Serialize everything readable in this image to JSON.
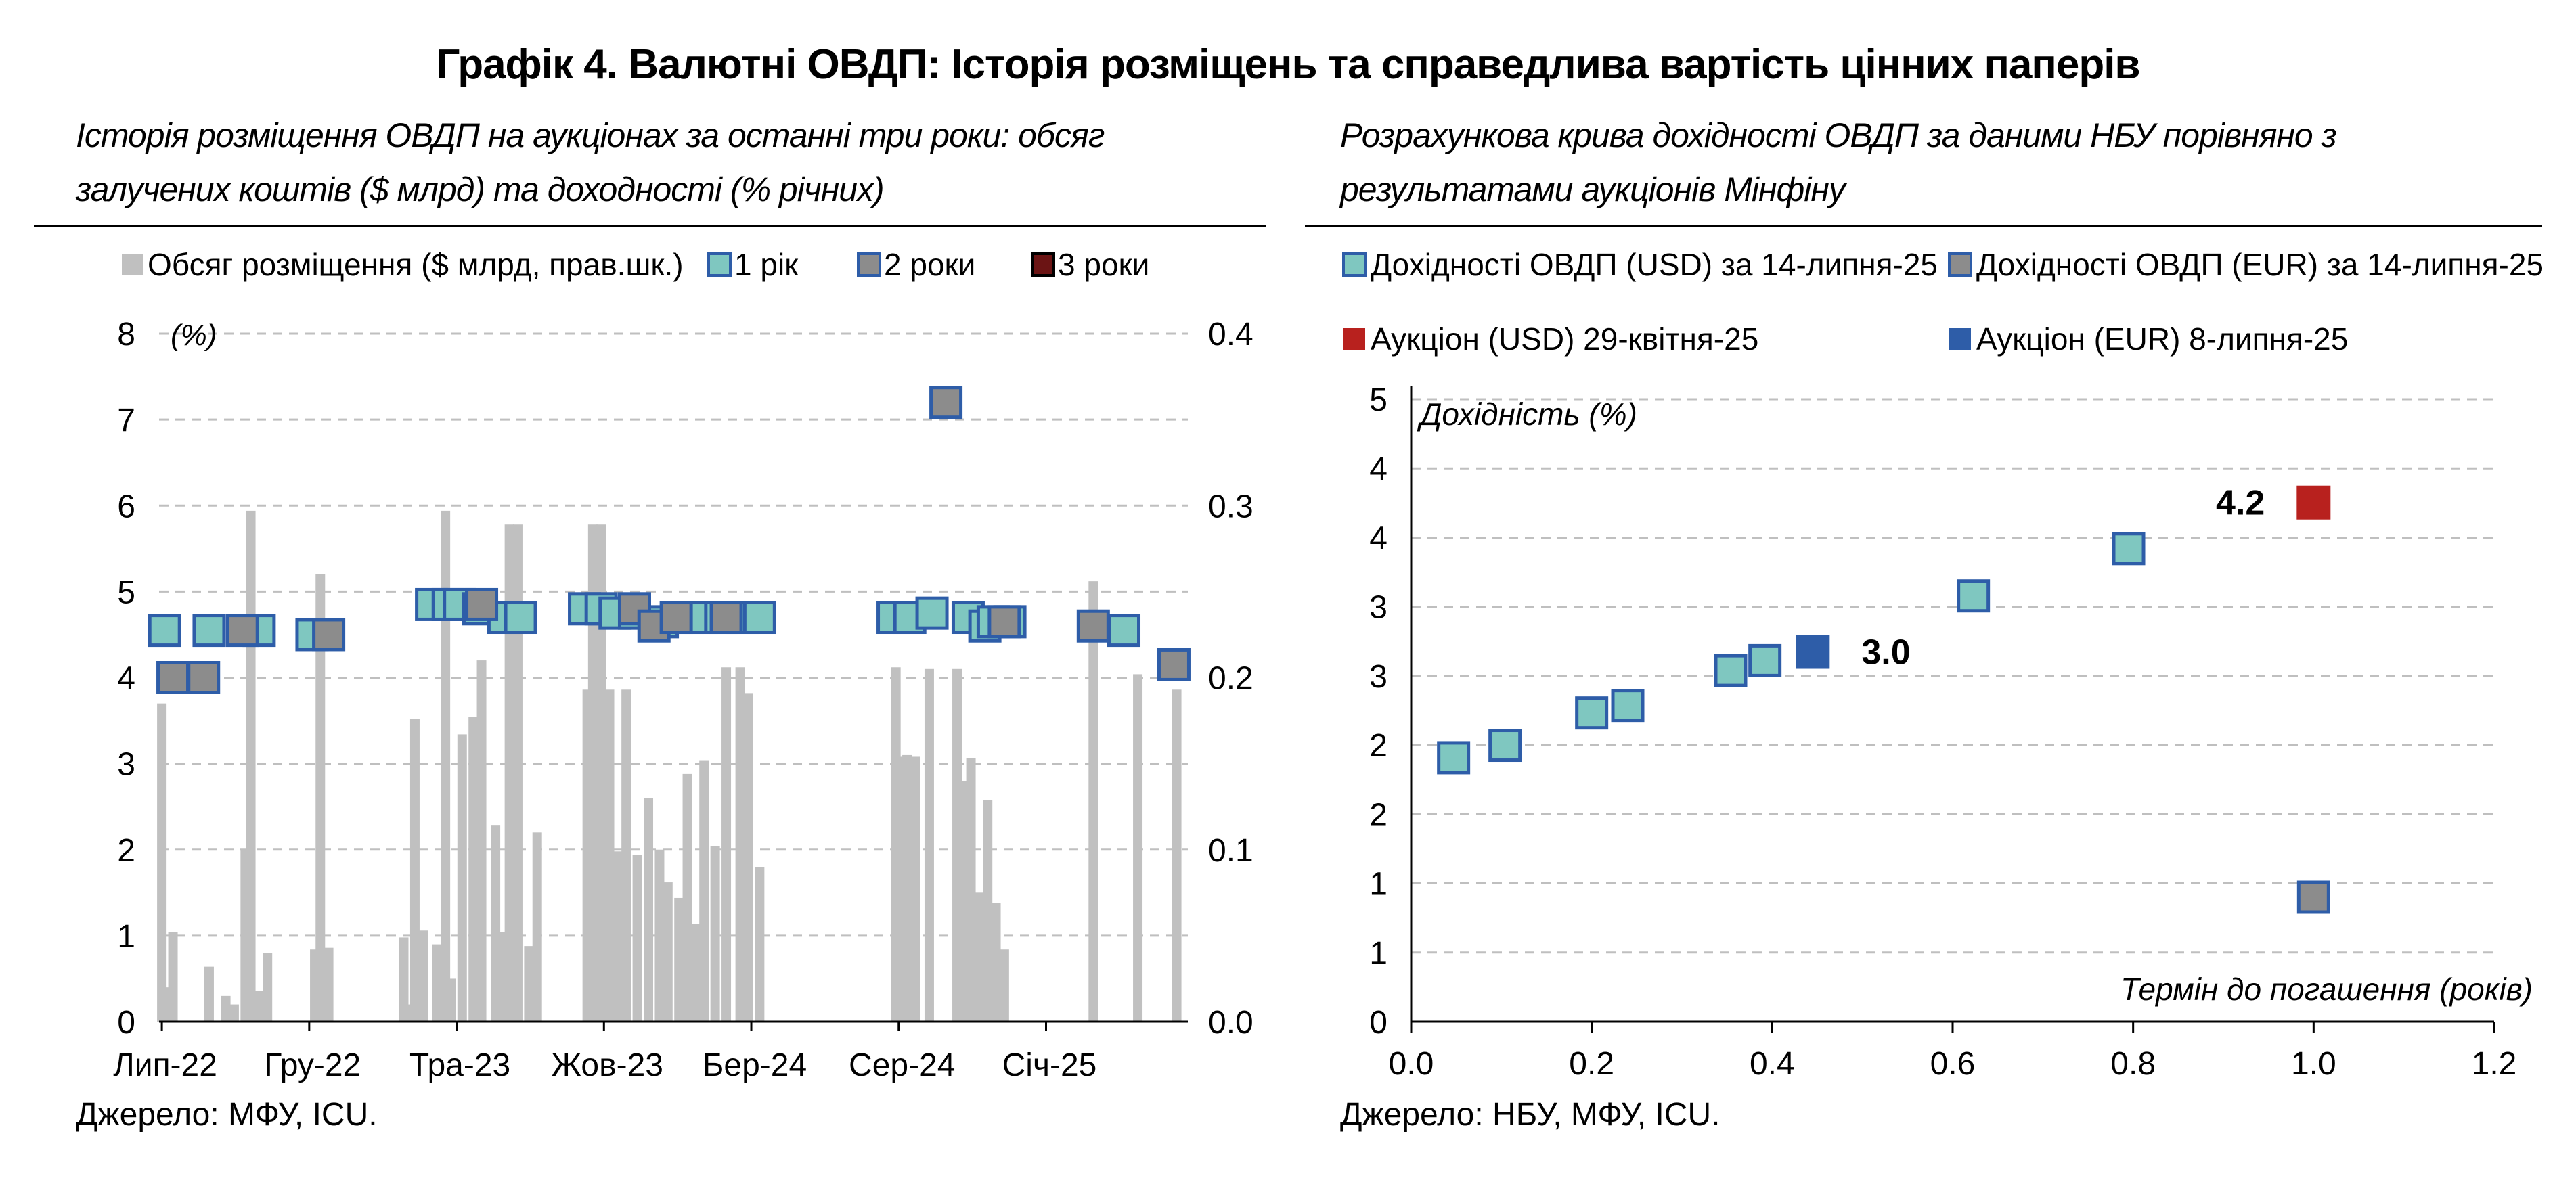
{
  "title": "Графік 4. Валютні ОВДП: Історія розміщень та справедлива вартість цінних паперів",
  "left": {
    "subtitle": "Історія розміщення ОВДП на аукціонах за останні три роки: обсяг залучених коштів ($ млрд) та доходності (% річних)",
    "source": "Джерело: МФУ, ICU."
  },
  "right": {
    "subtitle": "Розрахункова крива дохідності ОВДП за даними НБУ порівняно з результатами аукціонів Мінфіну",
    "source": "Джерело: НБУ, МФУ, ICU."
  },
  "colors": {
    "bar": "#c0c0c0",
    "one_year": "#7fc7c0",
    "two_year": "#8c8c8c",
    "three_year": "#6b1414",
    "marker_border": "#2e5da8",
    "auction_usd": "#b8211e",
    "auction_eur": "#2e5da8",
    "grid": "#bfbfbf"
  },
  "chart_data": [
    {
      "type": "bar+scatter",
      "y_left_label": "(%)",
      "y_left_ticks": [
        "0",
        "1",
        "2",
        "3",
        "4",
        "5",
        "6",
        "7",
        "8"
      ],
      "y_left_range": [
        0,
        8
      ],
      "y_right_ticks": [
        "0.0",
        "0.1",
        "0.2",
        "0.3",
        "0.4"
      ],
      "y_right_range": [
        0,
        0.4
      ],
      "x_ticks": [
        "Лип-22",
        "Гру-22",
        "Тра-23",
        "Жов-23",
        "Бер-24",
        "Сер-24",
        "Січ-25"
      ],
      "x_range": [
        0,
        37
      ],
      "grid": true,
      "legend": [
        "Обсяг розміщення ($ млрд, прав.шк.)",
        "1 рік",
        "2 роки",
        "3 роки"
      ],
      "bars": {
        "name": "Обсяг розміщення ($ млрд, прав.шк.)",
        "x": [
          0.1,
          0.3,
          0.5,
          1.8,
          2.4,
          2.7,
          3.1,
          3.3,
          3.6,
          3.9,
          5.6,
          5.8,
          6.1,
          8.8,
          9.0,
          9.2,
          9.5,
          10.0,
          10.3,
          10.5,
          10.9,
          11.3,
          11.6,
          12.1,
          12.4,
          12.6,
          12.9,
          13.3,
          13.6,
          15.4,
          15.6,
          15.9,
          16.2,
          16.5,
          16.8,
          17.2,
          17.6,
          18.0,
          18.3,
          18.7,
          19.0,
          19.3,
          19.6,
          20.0,
          20.4,
          20.9,
          21.2,
          21.6,
          26.5,
          26.7,
          26.9,
          27.2,
          27.7,
          28.7,
          29.0,
          29.2,
          29.5,
          29.8,
          30.1,
          30.4,
          33.6,
          35.2,
          36.6
        ],
        "values": [
          0.185,
          0.02,
          0.052,
          0.032,
          0.015,
          0.01,
          0.1,
          0.297,
          0.018,
          0.04,
          0.042,
          0.26,
          0.043,
          0.049,
          0.01,
          0.176,
          0.053,
          0.045,
          0.297,
          0.025,
          0.167,
          0.177,
          0.21,
          0.114,
          0.052,
          0.289,
          0.289,
          0.044,
          0.11,
          0.193,
          0.289,
          0.289,
          0.193,
          0.099,
          0.193,
          0.097,
          0.13,
          0.1,
          0.081,
          0.072,
          0.144,
          0.057,
          0.152,
          0.102,
          0.206,
          0.206,
          0.191,
          0.09,
          0.206,
          0.154,
          0.155,
          0.154,
          0.205,
          0.205,
          0.14,
          0.153,
          0.075,
          0.129,
          0.069,
          0.042,
          0.256,
          0.202,
          0.193
        ]
      },
      "series": [
        {
          "name": "1 рік",
          "x": [
            0.2,
            1.8,
            3.6,
            5.5,
            9.8,
            10.4,
            10.8,
            11.5,
            12.4,
            13.0,
            15.3,
            15.9,
            16.4,
            17.1,
            18.1,
            19.0,
            19.5,
            20.2,
            21.0,
            21.6,
            26.4,
            27.0,
            27.8,
            29.1,
            29.7,
            30.0,
            30.6,
            34.7
          ],
          "values": [
            4.55,
            4.55,
            4.55,
            4.5,
            4.85,
            4.85,
            4.85,
            4.8,
            4.7,
            4.7,
            4.8,
            4.8,
            4.75,
            4.75,
            4.65,
            4.7,
            4.7,
            4.7,
            4.7,
            4.7,
            4.7,
            4.7,
            4.75,
            4.7,
            4.6,
            4.65,
            4.65,
            4.55
          ]
        },
        {
          "name": "2 роки",
          "x": [
            0.5,
            1.6,
            3.0,
            6.1,
            11.6,
            17.1,
            17.8,
            18.6,
            20.4,
            28.3,
            30.4,
            33.6,
            36.5
          ],
          "values": [
            4.0,
            4.0,
            4.55,
            4.5,
            4.85,
            4.8,
            4.6,
            4.7,
            4.7,
            7.2,
            4.65,
            4.6,
            4.15
          ]
        },
        {
          "name": "3 роки",
          "x": [],
          "values": []
        }
      ]
    },
    {
      "type": "scatter",
      "ylabel": "Дохідність (%)",
      "xlabel": "Термін до погашення (років)",
      "y_ticks": [
        "0",
        "1",
        "1",
        "2",
        "2",
        "3",
        "3",
        "4",
        "4",
        "5"
      ],
      "y_range": [
        0,
        5
      ],
      "x_ticks": [
        "0.0",
        "0.2",
        "0.4",
        "0.6",
        "0.8",
        "1.0",
        "1.2"
      ],
      "x_range": [
        0,
        1.2
      ],
      "grid": true,
      "legend": [
        "Дохідності ОВДП (USD) за 14-липня-25",
        "Дохідності ОВДП (EUR) за 14-липня-25",
        "Аукціон (USD) 29-квітня-25",
        "Аукціон (EUR) 8-липня-25"
      ],
      "series": [
        {
          "name": "Дохідності ОВДП (USD) за 14-липня-25",
          "x": [
            0.047,
            0.104,
            0.2,
            0.24,
            0.354,
            0.392,
            0.623,
            0.795
          ],
          "values": [
            2.12,
            2.22,
            2.48,
            2.54,
            2.82,
            2.9,
            3.42,
            3.8
          ]
        },
        {
          "name": "Дохідності ОВДП (EUR) за 14-липня-25",
          "x": [
            1.0
          ],
          "values": [
            1.0
          ]
        },
        {
          "name": "Аукціон (USD) 29-квітня-25",
          "x": [
            1.0
          ],
          "values": [
            4.17
          ],
          "label": "4.2"
        },
        {
          "name": "Аукціон (EUR) 8-липня-25",
          "x": [
            0.445
          ],
          "values": [
            2.97
          ],
          "label": "3.0"
        }
      ]
    }
  ]
}
